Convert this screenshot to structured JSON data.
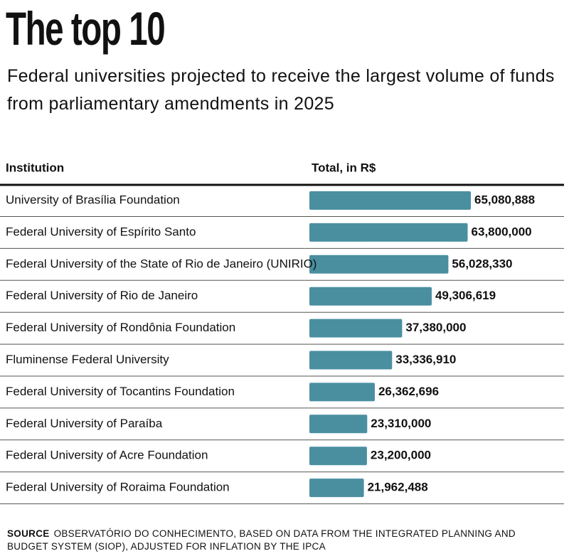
{
  "chart_data": {
    "type": "bar",
    "title": "The top 10",
    "subtitle": "Federal universities projected to receive the largest volume of funds from parliamentary amendments in 2025",
    "column_headers": [
      "Institution",
      "Total, in R$"
    ],
    "categories": [
      "University of Brasília Foundation",
      "Federal University of Espírito Santo",
      "Federal University of the State of Rio de Janeiro (UNIRIO)",
      "Federal University of Rio de Janeiro",
      "Federal University of Rondônia Foundation",
      "Fluminense Federal University",
      "Federal University of Tocantins Foundation",
      "Federal University of Paraíba",
      "Federal University of Acre Foundation",
      "Federal University of Roraima Foundation"
    ],
    "values": [
      65080888,
      63800000,
      56028330,
      49306619,
      37380000,
      33336910,
      26362696,
      23310000,
      23200000,
      21962488
    ],
    "value_labels": [
      "65,080,888",
      "63,800,000",
      "56,028,330",
      "49,306,619",
      "37,380,000",
      "33,336,910",
      "26,362,696",
      "23,310,000",
      "23,200,000",
      "21,962,488"
    ],
    "color": "#4a8fa0",
    "source_label": "SOURCE",
    "source": "OBSERVATÓRIO DO CONHECIMENTO, BASED ON DATA FROM THE INTEGRATED PLANNING AND BUDGET SYSTEM (SIOP), ADJUSTED FOR INFLATION BY THE IPCA"
  }
}
